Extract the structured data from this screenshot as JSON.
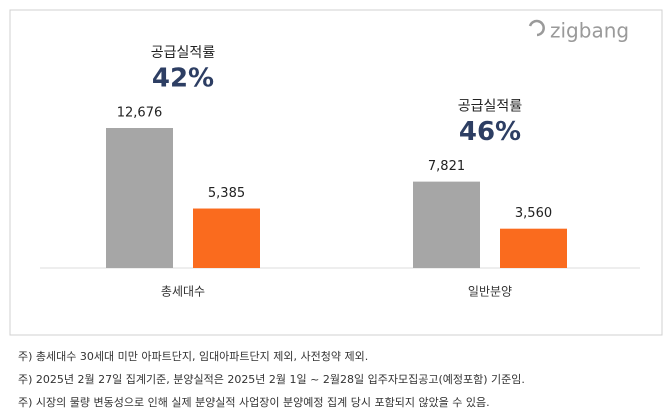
{
  "chart_data": {
    "type": "bar",
    "logo": "zigbang",
    "categories": [
      "총세대수",
      "일반분양"
    ],
    "series": [
      {
        "color": "#a6a6a6",
        "values": [
          12676,
          7821
        ],
        "value_labels": [
          "12,676",
          "7,821"
        ]
      },
      {
        "color": "#fa6b1e",
        "values": [
          5385,
          3560
        ],
        "value_labels": [
          "5,385",
          "3,560"
        ]
      }
    ],
    "annotations": [
      {
        "text": "공급실적률",
        "rate": "42%"
      },
      {
        "text": "공급실적률",
        "rate": "46%"
      }
    ]
  },
  "footnotes": [
    "주) 총세대수 30세대 미만 아파트단지, 임대아파트단지 제외, 사전청약 제외.",
    "주) 2025년 2월 27일 집계기준, 분양실적은 2025년 2월 1일 ~ 2월28일 입주자모집공고(예정포함) 기준임.",
    "주) 시장의 물량 변동성으로 인해 실제 분양실적 사업장이 분양예정 집계 당시 포함되지 않았을 수 있음."
  ]
}
